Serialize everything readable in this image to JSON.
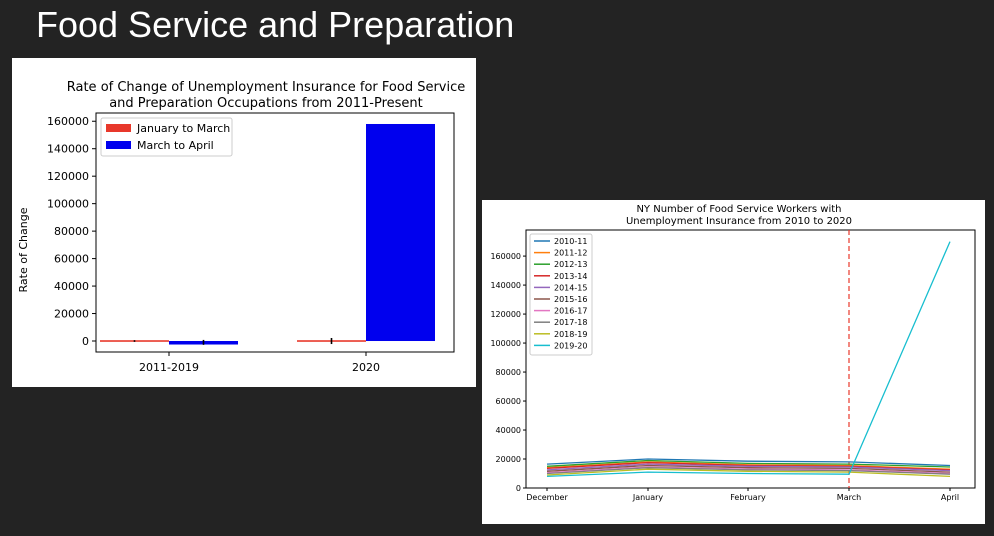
{
  "slide": {
    "title": "Food Service and Preparation"
  },
  "chart_data": [
    {
      "type": "bar",
      "title_lines": [
        "Rate of Change of Unemployment Insurance for Food Service",
        "and Preparation Occupations from 2011-Present"
      ],
      "xlabel": "",
      "ylabel": "Rate of Change",
      "categories": [
        "2011-2019",
        "2020"
      ],
      "series": [
        {
          "name": "January to March",
          "color": "#e8382b",
          "values": [
            0,
            0
          ],
          "errors": [
            600,
            2200
          ]
        },
        {
          "name": "March to April",
          "color": "#0000ee",
          "values": [
            -1000,
            158000
          ],
          "errors": [
            1800,
            0
          ]
        }
      ],
      "ylim": [
        -8000,
        166000
      ],
      "yticks": [
        0,
        20000,
        40000,
        60000,
        80000,
        100000,
        120000,
        140000,
        160000
      ],
      "legend_position": "top-left",
      "grid": false
    },
    {
      "type": "line",
      "title_lines": [
        "NY Number of Food Service Workers with",
        "Unemployment Insurance from 2010 to 2020"
      ],
      "xlabel": "",
      "ylabel": "",
      "x": [
        "December",
        "January",
        "February",
        "March",
        "April"
      ],
      "series": [
        {
          "name": "2010-11",
          "color": "#1f77b4",
          "values": [
            16500,
            20000,
            18500,
            18000,
            15500
          ]
        },
        {
          "name": "2011-12",
          "color": "#ff7f0e",
          "values": [
            14000,
            18000,
            16000,
            15500,
            13000
          ]
        },
        {
          "name": "2012-13",
          "color": "#2ca02c",
          "values": [
            15000,
            19000,
            17000,
            16500,
            14500
          ]
        },
        {
          "name": "2013-14",
          "color": "#d62728",
          "values": [
            13500,
            17500,
            15500,
            15000,
            12500
          ]
        },
        {
          "name": "2014-15",
          "color": "#9467bd",
          "values": [
            12500,
            16500,
            15000,
            14500,
            12000
          ]
        },
        {
          "name": "2015-16",
          "color": "#8c564b",
          "values": [
            11500,
            15500,
            14000,
            13500,
            11000
          ]
        },
        {
          "name": "2016-17",
          "color": "#e377c2",
          "values": [
            10500,
            14500,
            13000,
            12500,
            10000
          ]
        },
        {
          "name": "2017-18",
          "color": "#7f7f7f",
          "values": [
            10000,
            14000,
            12500,
            12000,
            9500
          ]
        },
        {
          "name": "2018-19",
          "color": "#bcbd22",
          "values": [
            9000,
            13000,
            11500,
            11000,
            8000
          ]
        },
        {
          "name": "2019-20",
          "color": "#17becf",
          "values": [
            8000,
            11000,
            10000,
            9500,
            170000
          ]
        }
      ],
      "ylim": [
        0,
        178000
      ],
      "yticks": [
        0,
        20000,
        40000,
        60000,
        80000,
        100000,
        120000,
        140000,
        160000
      ],
      "vline": {
        "x": "March",
        "color": "#e8382b",
        "style": "dashed"
      },
      "legend_position": "top-left",
      "grid": false
    }
  ]
}
